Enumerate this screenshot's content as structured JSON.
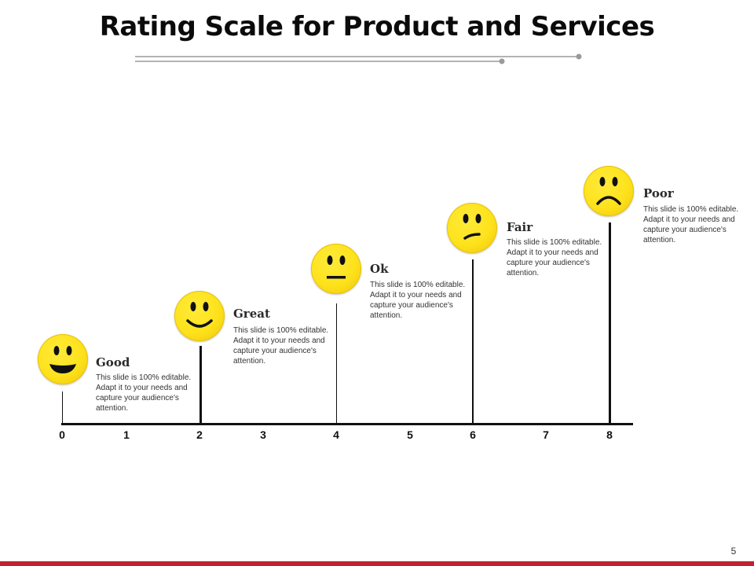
{
  "title": "Rating Scale for Product and Services",
  "axis": {
    "ticks": [
      "0",
      "1",
      "2",
      "3",
      "4",
      "5",
      "6",
      "7",
      "8"
    ]
  },
  "ratings": [
    {
      "label": "Good",
      "value": 0,
      "expression": "big-smile",
      "description": "This slide is 100% editable.  Adapt it to your needs and capture your audience's attention."
    },
    {
      "label": "Great",
      "value": 2,
      "expression": "smile",
      "description": "This slide is 100% editable.  Adapt it to your needs and capture your audience's attention."
    },
    {
      "label": "Ok",
      "value": 4,
      "expression": "neutral",
      "description": "This slide is 100% editable.  Adapt it to your needs and capture your audience's attention."
    },
    {
      "label": "Fair",
      "value": 6,
      "expression": "slight-frown",
      "description": "This slide is 100% editable.  Adapt it to your needs and capture your audience's attention."
    },
    {
      "label": "Poor",
      "value": 8,
      "expression": "frown",
      "description": "This slide is 100% editable.  Adapt it to your needs and capture your audience's attention."
    }
  ],
  "page_number": "5",
  "colors": {
    "face": "#fde21b",
    "accent": "#c0232f",
    "decor_line": "#9a9a9a"
  }
}
